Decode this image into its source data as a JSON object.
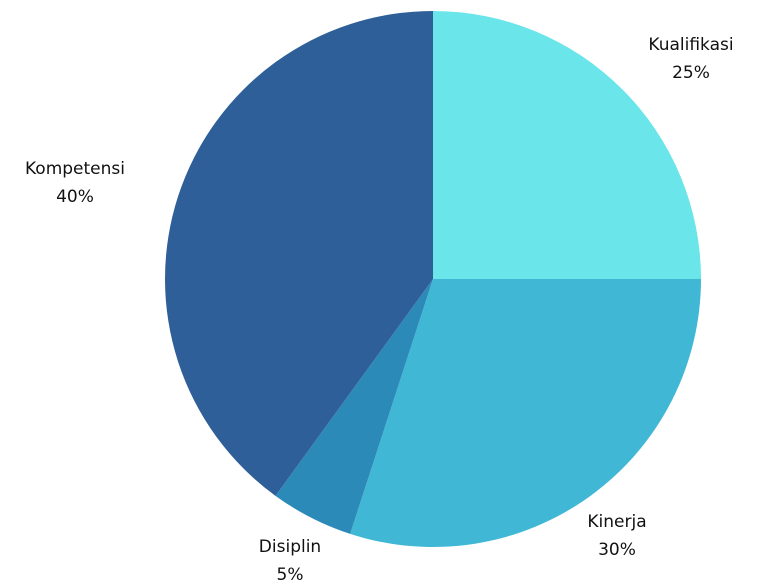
{
  "chart_data": {
    "type": "pie",
    "slices": [
      {
        "label": "Kualifikasi",
        "percent_label": "25%",
        "value": 25,
        "color": "#6ae5ea"
      },
      {
        "label": "Kinerja",
        "percent_label": "30%",
        "value": 30,
        "color": "#41b7d6"
      },
      {
        "label": "Disiplin",
        "percent_label": "5%",
        "value": 5,
        "color": "#2c8ab8"
      },
      {
        "label": "Kompetensi",
        "percent_label": "40%",
        "value": 40,
        "color": "#2e5f98"
      }
    ],
    "start_angle_deg": 0,
    "direction": "clockwise"
  }
}
